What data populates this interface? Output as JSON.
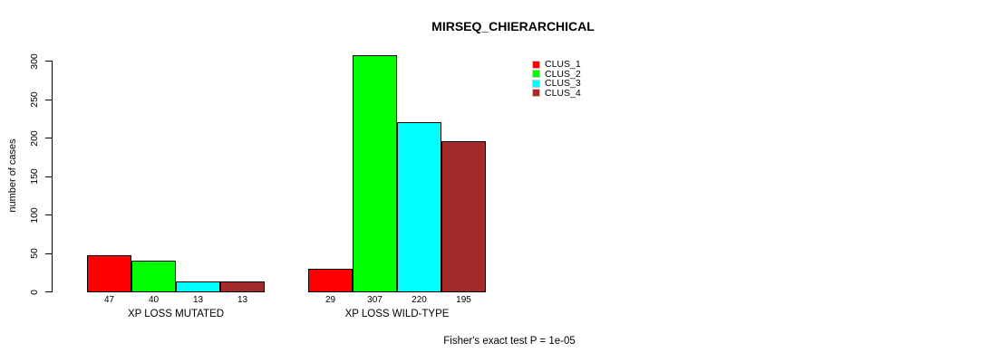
{
  "chart_data": {
    "type": "bar",
    "title": "MIRSEQ_CHIERARCHICAL",
    "ylabel": "number of cases",
    "xlabel": "",
    "ylim": [
      0,
      300
    ],
    "yticks": [
      0,
      50,
      100,
      150,
      200,
      250,
      300
    ],
    "categories": [
      "XP LOSS MUTATED",
      "XP LOSS WILD-TYPE"
    ],
    "series": [
      {
        "name": "CLUS_1",
        "color": "#FF0000",
        "values": [
          47,
          29
        ]
      },
      {
        "name": "CLUS_2",
        "color": "#00FF00",
        "values": [
          40,
          307
        ]
      },
      {
        "name": "CLUS_3",
        "color": "#00FFFF",
        "values": [
          13,
          220
        ]
      },
      {
        "name": "CLUS_4",
        "color": "#A52A2A",
        "values": [
          13,
          195
        ]
      }
    ],
    "bar_value_labels_shown": true,
    "annotation": "Fisher's exact test P = 1e-05",
    "legend_position": "top-right",
    "grid": false,
    "colors": {
      "background": "#FFFFFF",
      "bar_border": "#000000",
      "text": "#000000"
    }
  }
}
